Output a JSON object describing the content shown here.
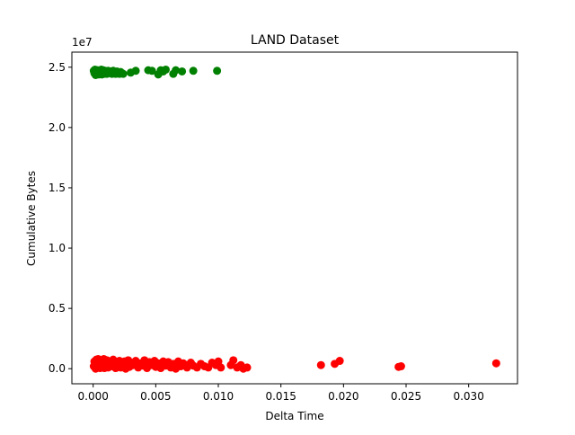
{
  "chart_data": {
    "type": "scatter",
    "title": "LAND Dataset",
    "xlabel": "Delta Time",
    "ylabel": "Cumulative Bytes",
    "y_offset_label": "1e7",
    "xlim": [
      -0.0017,
      0.0339
    ],
    "ylim": [
      -1250000,
      26250000
    ],
    "xticks": [
      0.0,
      0.005,
      0.01,
      0.015,
      0.02,
      0.025,
      0.03
    ],
    "xtick_labels": [
      "0.000",
      "0.005",
      "0.010",
      "0.015",
      "0.020",
      "0.025",
      "0.030"
    ],
    "yticks": [
      0,
      5000000,
      10000000,
      15000000,
      20000000,
      25000000
    ],
    "ytick_labels": [
      "0.0",
      "0.5",
      "1.0",
      "1.5",
      "2.0",
      "2.5"
    ],
    "grid": false,
    "series": [
      {
        "color": "#008000",
        "points": [
          [
            5e-05,
            24700000
          ],
          [
            0.0001,
            24500000
          ],
          [
            0.00015,
            24800000
          ],
          [
            0.0002,
            24350000
          ],
          [
            0.00025,
            24650000
          ],
          [
            0.0003,
            24450000
          ],
          [
            0.00035,
            24750000
          ],
          [
            0.0004,
            24550000
          ],
          [
            0.00045,
            24400000
          ],
          [
            0.0005,
            24700000
          ],
          [
            0.00055,
            24600000
          ],
          [
            0.0006,
            24500000
          ],
          [
            0.00065,
            24800000
          ],
          [
            0.0007,
            24400000
          ],
          [
            0.00075,
            24650000
          ],
          [
            0.0008,
            24750000
          ],
          [
            0.00085,
            24500000
          ],
          [
            0.0009,
            24450000
          ],
          [
            0.00095,
            24700000
          ],
          [
            0.001,
            24600000
          ],
          [
            0.0011,
            24450000
          ],
          [
            0.0012,
            24700000
          ],
          [
            0.0013,
            24550000
          ],
          [
            0.0014,
            24650000
          ],
          [
            0.0015,
            24450000
          ],
          [
            0.0016,
            24700000
          ],
          [
            0.0017,
            24600000
          ],
          [
            0.0018,
            24450000
          ],
          [
            0.0019,
            24650000
          ],
          [
            0.002,
            24550000
          ],
          [
            0.0021,
            24450000
          ],
          [
            0.0022,
            24600000
          ],
          [
            0.0023,
            24500000
          ],
          [
            0.0024,
            24450000
          ],
          [
            0.003,
            24550000
          ],
          [
            0.0034,
            24700000
          ],
          [
            0.0044,
            24750000
          ],
          [
            0.0047,
            24700000
          ],
          [
            0.0052,
            24400000
          ],
          [
            0.0054,
            24750000
          ],
          [
            0.0056,
            24650000
          ],
          [
            0.0058,
            24800000
          ],
          [
            0.0064,
            24450000
          ],
          [
            0.0066,
            24750000
          ],
          [
            0.0071,
            24650000
          ],
          [
            0.008,
            24700000
          ],
          [
            0.0099,
            24700000
          ]
        ]
      },
      {
        "color": "#ff0000",
        "points": [
          [
            5e-05,
            200000
          ],
          [
            0.0001,
            600000
          ],
          [
            0.00015,
            350000
          ],
          [
            0.0002,
            0
          ],
          [
            0.00025,
            750000
          ],
          [
            0.0003,
            100000
          ],
          [
            0.00035,
            450000
          ],
          [
            0.0004,
            800000
          ],
          [
            0.00045,
            250000
          ],
          [
            0.0005,
            550000
          ],
          [
            0.00055,
            50000
          ],
          [
            0.0006,
            700000
          ],
          [
            0.00065,
            400000
          ],
          [
            0.0007,
            150000
          ],
          [
            0.00075,
            650000
          ],
          [
            0.0008,
            300000
          ],
          [
            0.00085,
            800000
          ],
          [
            0.0009,
            50000
          ],
          [
            0.00095,
            500000
          ],
          [
            0.001,
            250000
          ],
          [
            0.0011,
            700000
          ],
          [
            0.0012,
            100000
          ],
          [
            0.0013,
            450000
          ],
          [
            0.0014,
            600000
          ],
          [
            0.0015,
            200000
          ],
          [
            0.0016,
            750000
          ],
          [
            0.0017,
            350000
          ],
          [
            0.0018,
            50000
          ],
          [
            0.0019,
            550000
          ],
          [
            0.002,
            300000
          ],
          [
            0.0021,
            650000
          ],
          [
            0.0022,
            100000
          ],
          [
            0.0023,
            450000
          ],
          [
            0.0024,
            200000
          ],
          [
            0.0025,
            600000
          ],
          [
            0.0026,
            0
          ],
          [
            0.0027,
            400000
          ],
          [
            0.0028,
            700000
          ],
          [
            0.0029,
            150000
          ],
          [
            0.003,
            500000
          ],
          [
            0.0032,
            300000
          ],
          [
            0.0034,
            650000
          ],
          [
            0.0036,
            100000
          ],
          [
            0.0038,
            450000
          ],
          [
            0.004,
            250000
          ],
          [
            0.0041,
            700000
          ],
          [
            0.0043,
            50000
          ],
          [
            0.0045,
            550000
          ],
          [
            0.0047,
            300000
          ],
          [
            0.0049,
            650000
          ],
          [
            0.005,
            150000
          ],
          [
            0.0052,
            450000
          ],
          [
            0.0054,
            50000
          ],
          [
            0.0056,
            600000
          ],
          [
            0.0058,
            250000
          ],
          [
            0.006,
            550000
          ],
          [
            0.0062,
            100000
          ],
          [
            0.0064,
            400000
          ],
          [
            0.0066,
            0
          ],
          [
            0.0068,
            600000
          ],
          [
            0.007,
            200000
          ],
          [
            0.0072,
            450000
          ],
          [
            0.0075,
            100000
          ],
          [
            0.0078,
            500000
          ],
          [
            0.008,
            250000
          ],
          [
            0.0083,
            100000
          ],
          [
            0.0086,
            400000
          ],
          [
            0.0089,
            200000
          ],
          [
            0.0092,
            100000
          ],
          [
            0.0095,
            500000
          ],
          [
            0.0098,
            300000
          ],
          [
            0.01,
            600000
          ],
          [
            0.0102,
            100000
          ],
          [
            0.011,
            300000
          ],
          [
            0.0112,
            700000
          ],
          [
            0.0115,
            100000
          ],
          [
            0.0118,
            300000
          ],
          [
            0.012,
            0
          ],
          [
            0.0123,
            100000
          ],
          [
            0.0182,
            300000
          ],
          [
            0.0193,
            400000
          ],
          [
            0.0197,
            650000
          ],
          [
            0.0244,
            150000
          ],
          [
            0.0246,
            200000
          ],
          [
            0.0322,
            450000
          ]
        ]
      }
    ]
  }
}
